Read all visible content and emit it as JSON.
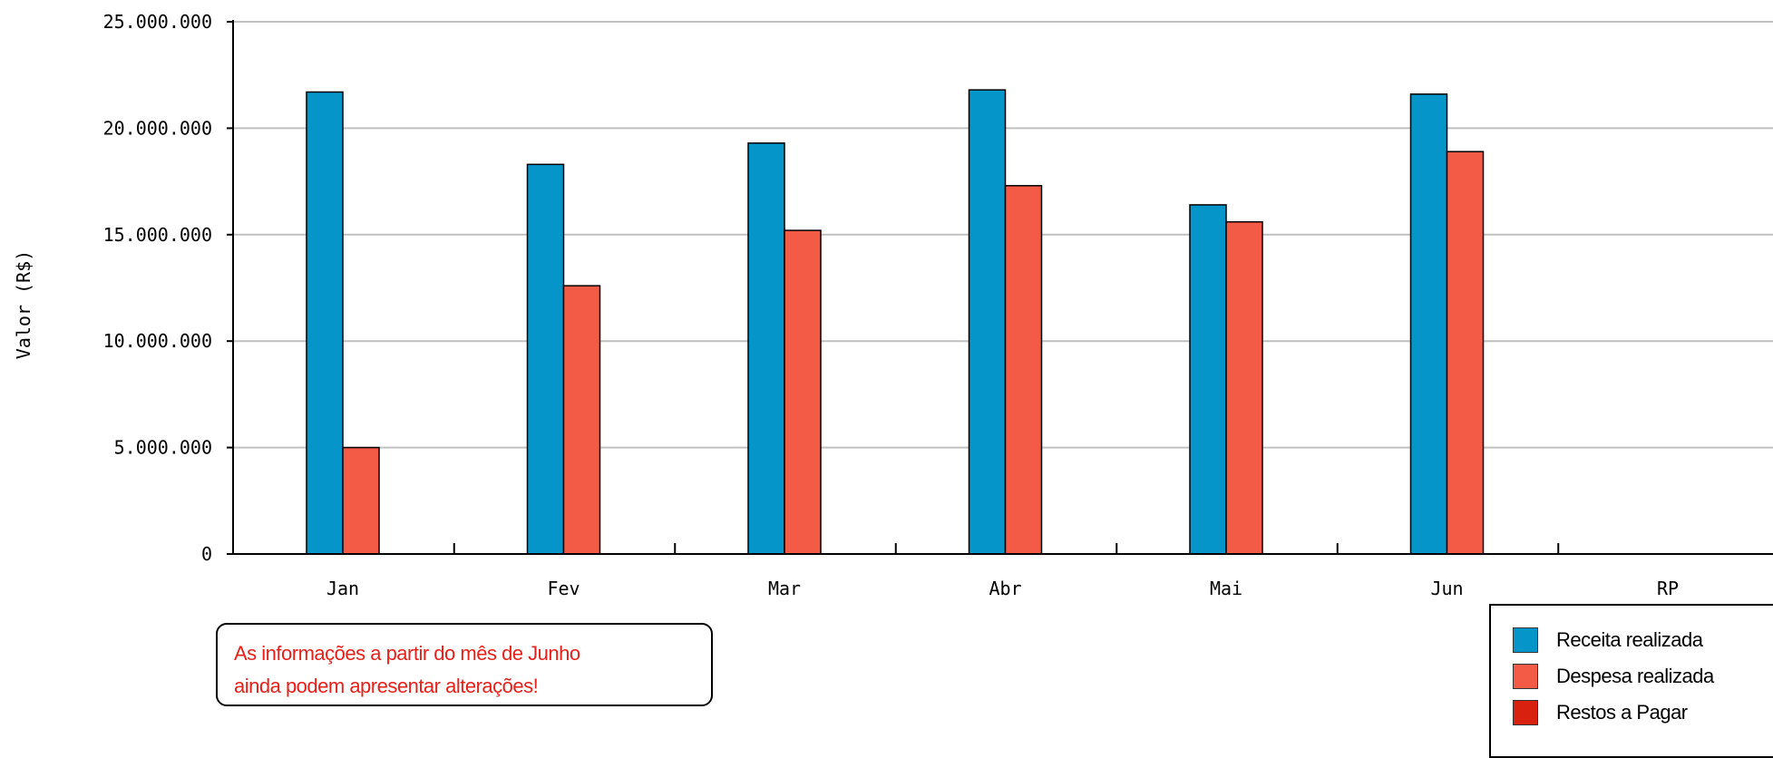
{
  "chart_data": {
    "type": "bar",
    "categories": [
      "Jan",
      "Fev",
      "Mar",
      "Abr",
      "Mai",
      "Jun",
      "RP"
    ],
    "ylabel": "Valor (R$)",
    "xlabel": "",
    "ylim": [
      0,
      25000000
    ],
    "yticks": [
      0,
      5000000,
      10000000,
      15000000,
      20000000,
      25000000
    ],
    "ytick_labels": [
      "0",
      "5.000.000",
      "10.000.000",
      "15.000.000",
      "20.000.000",
      "25.000.000"
    ],
    "grid": "horizontal",
    "legend_position": "bottom-right",
    "series": [
      {
        "name": "Receita realizada",
        "color": "#0595c9",
        "values": [
          21700000,
          18300000,
          19300000,
          21800000,
          16400000,
          21600000,
          null
        ]
      },
      {
        "name": "Despesa realizada",
        "color": "#f45b46",
        "values": [
          5000000,
          12600000,
          15200000,
          17300000,
          15600000,
          18900000,
          null
        ]
      },
      {
        "name": "Restos a Pagar",
        "color": "#d8220f",
        "values": [
          null,
          null,
          null,
          null,
          null,
          null,
          null
        ]
      }
    ]
  },
  "note": {
    "line1": "As informações a partir do mês de Junho",
    "line2": "ainda podem apresentar alterações!"
  }
}
